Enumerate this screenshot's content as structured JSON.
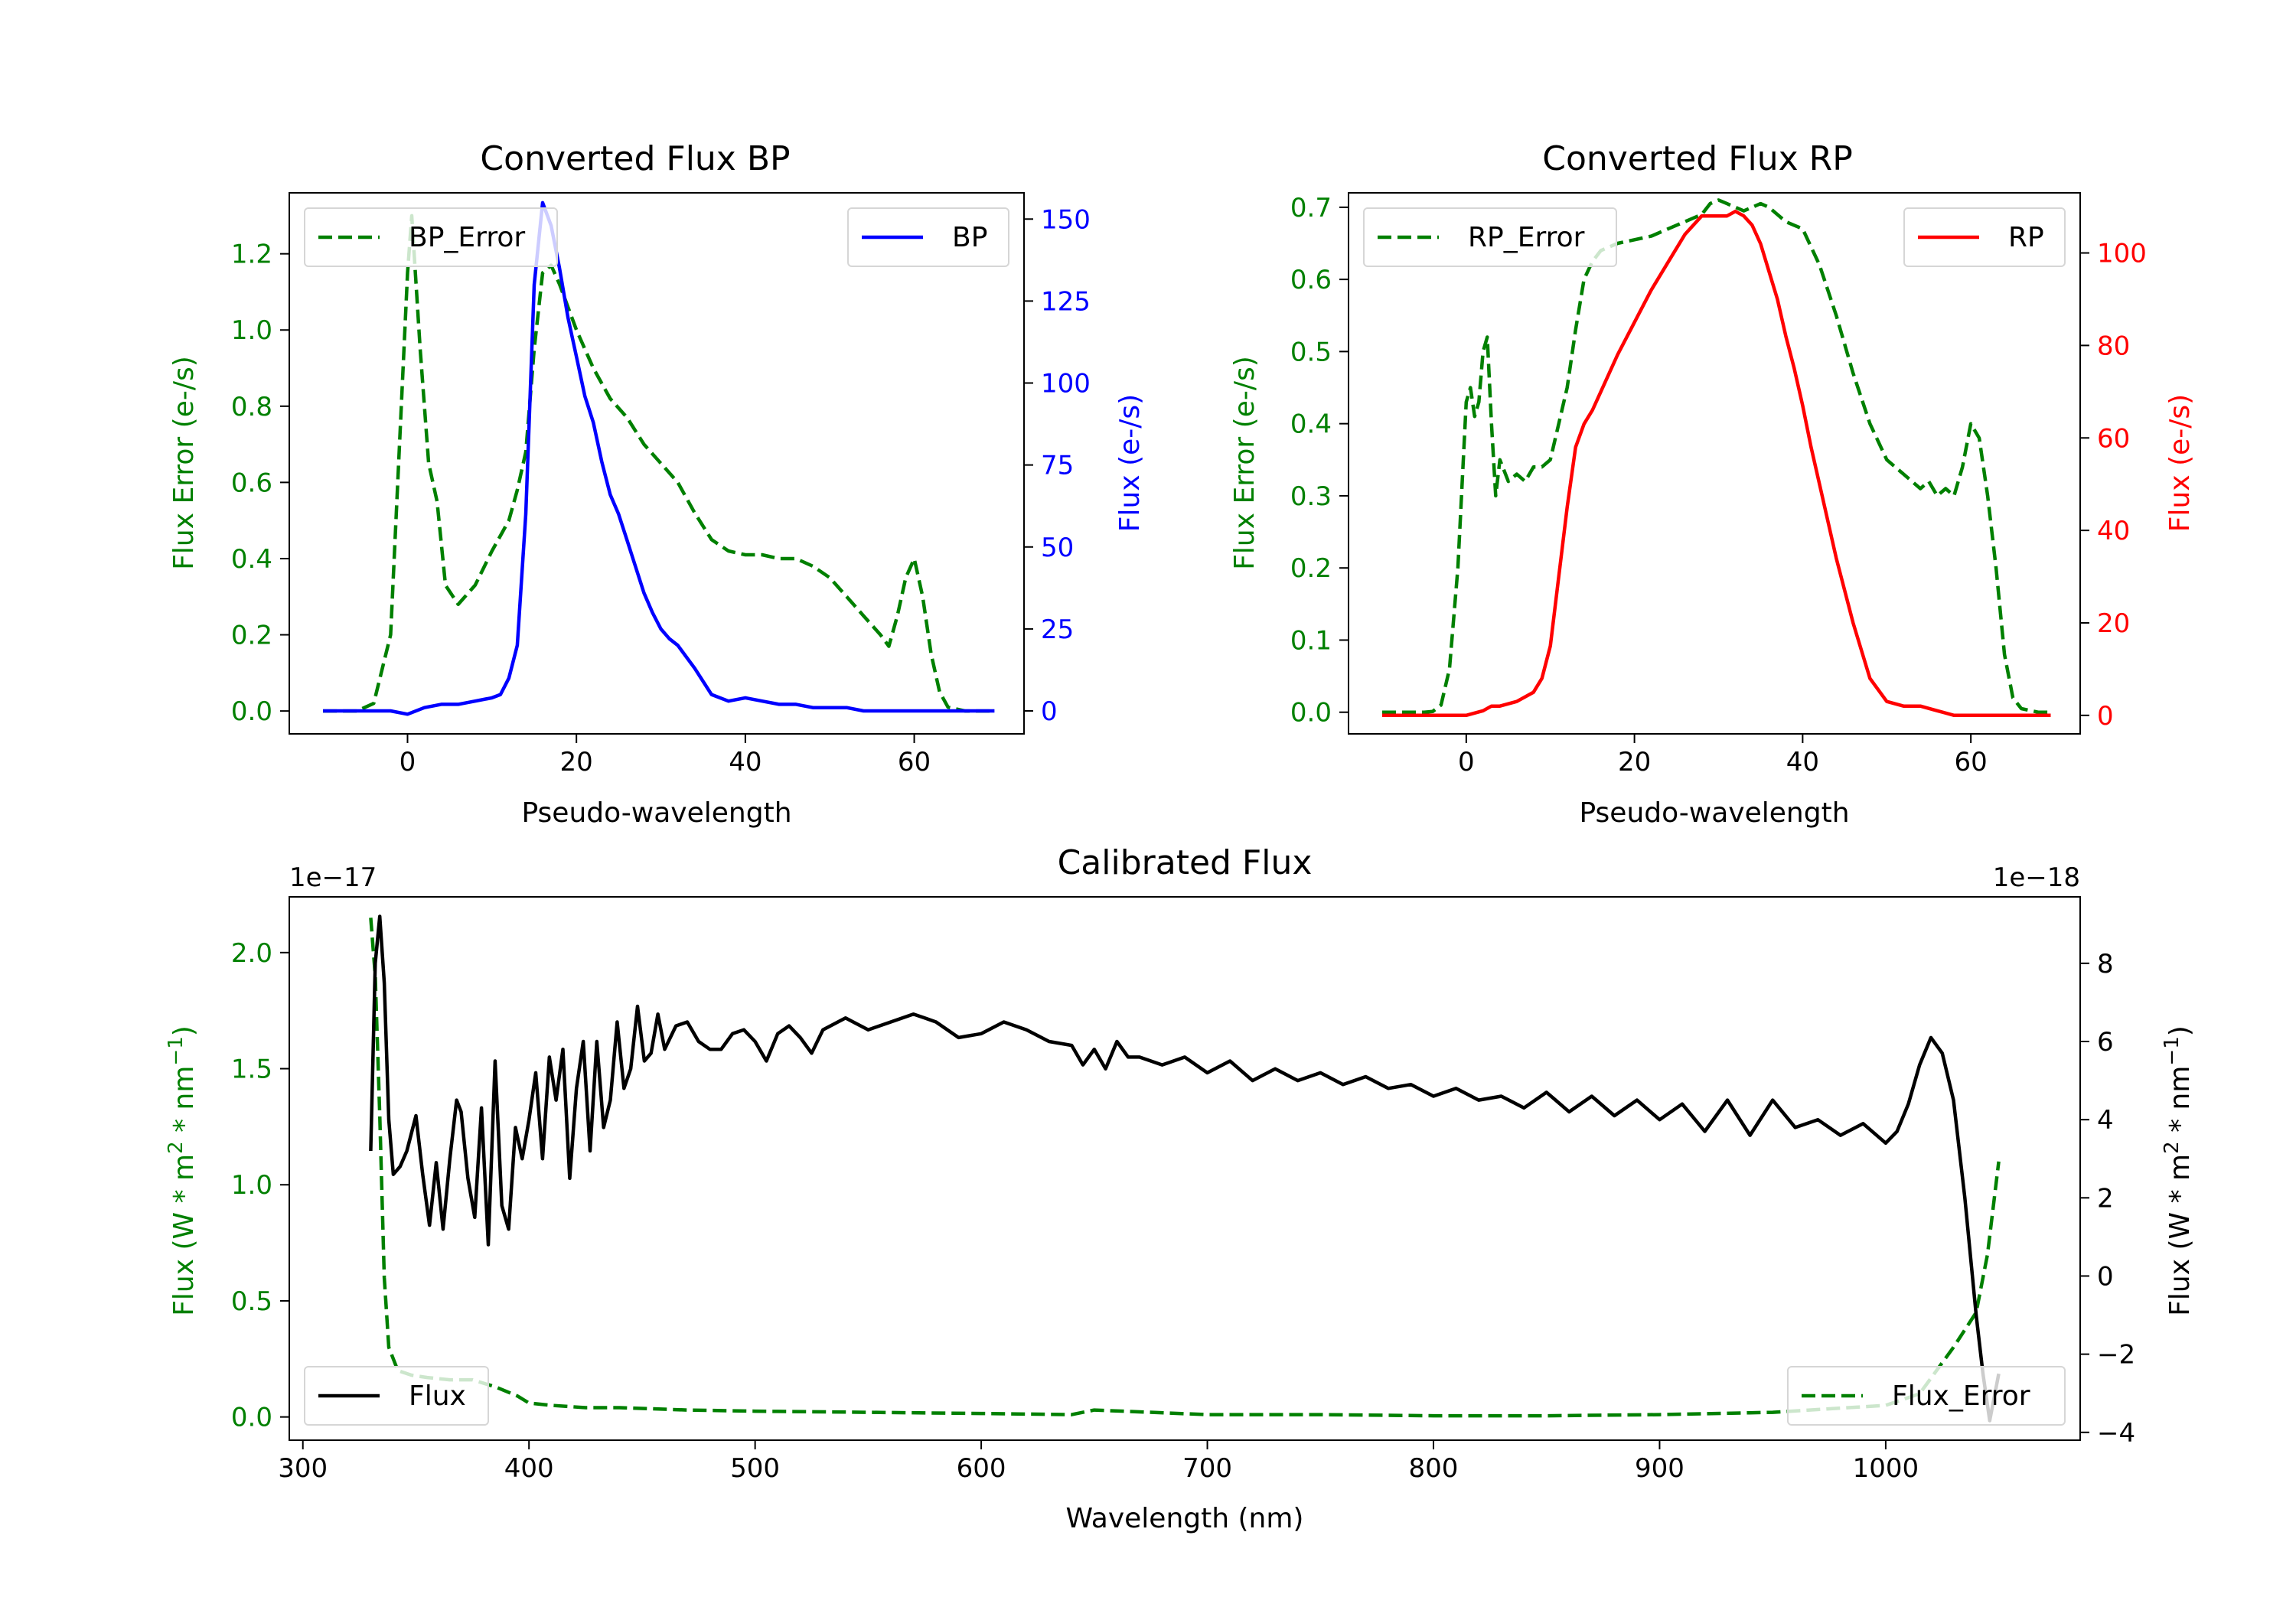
{
  "chart_data": [
    {
      "type": "line",
      "title": "Converted Flux BP",
      "xlabel": "Pseudo-wavelength",
      "ylabel_left": "Flux Error (e-/s)",
      "ylabel_right": "Flux (e-/s)",
      "xlim": [
        -14,
        73
      ],
      "ylim_left": [
        -0.06,
        1.36
      ],
      "ylim_right": [
        -7,
        158
      ],
      "xticks": [
        "0",
        "20",
        "40",
        "60"
      ],
      "yticks_left": [
        "0.0",
        "0.2",
        "0.4",
        "0.6",
        "0.8",
        "1.0",
        "1.2"
      ],
      "yticks_right": [
        "0",
        "25",
        "50",
        "75",
        "100",
        "125",
        "150"
      ],
      "legend": [
        {
          "name": "BP_Error",
          "placement": "upper left"
        },
        {
          "name": "BP",
          "placement": "upper right"
        }
      ],
      "series": [
        {
          "name": "BP_Error",
          "axis": "left",
          "color": "#008000",
          "style": "dashed",
          "x": [
            -10,
            -6,
            -4,
            -2,
            0,
            0.5,
            1.5,
            2.5,
            3.5,
            4.5,
            6,
            8,
            10,
            12,
            13,
            14,
            15,
            16,
            17,
            18,
            20,
            22,
            24,
            26,
            28,
            30,
            32,
            34,
            36,
            38,
            40,
            42,
            44,
            46,
            48,
            50,
            52,
            54,
            56,
            57,
            58,
            59,
            60,
            61,
            62,
            63,
            64,
            66,
            68,
            69.5
          ],
          "y": [
            0.0,
            0.0,
            0.02,
            0.2,
            1.15,
            1.3,
            0.95,
            0.65,
            0.55,
            0.33,
            0.28,
            0.33,
            0.42,
            0.5,
            0.58,
            0.68,
            0.95,
            1.15,
            1.17,
            1.12,
            1.0,
            0.9,
            0.82,
            0.77,
            0.7,
            0.65,
            0.6,
            0.52,
            0.45,
            0.42,
            0.41,
            0.41,
            0.4,
            0.4,
            0.38,
            0.35,
            0.3,
            0.25,
            0.2,
            0.17,
            0.25,
            0.35,
            0.4,
            0.3,
            0.15,
            0.05,
            0.01,
            0.0,
            0.0,
            0.0
          ]
        },
        {
          "name": "BP",
          "axis": "right",
          "color": "#0000ff",
          "style": "solid",
          "x": [
            -10,
            -6,
            -2,
            0,
            2,
            4,
            6,
            8,
            10,
            11,
            12,
            13,
            14,
            15,
            16,
            17,
            18,
            19,
            20,
            21,
            22,
            23,
            24,
            25,
            26,
            27,
            28,
            29,
            30,
            31,
            32,
            34,
            36,
            38,
            40,
            42,
            44,
            46,
            48,
            50,
            52,
            54,
            56,
            58,
            60,
            62,
            64,
            66,
            68,
            69.5
          ],
          "y": [
            0,
            0,
            0,
            -1,
            1,
            2,
            2,
            3,
            4,
            5,
            10,
            20,
            60,
            130,
            155,
            148,
            135,
            120,
            108,
            96,
            88,
            76,
            66,
            60,
            52,
            44,
            36,
            30,
            25,
            22,
            20,
            13,
            5,
            3,
            4,
            3,
            2,
            2,
            1,
            1,
            1,
            0,
            0,
            0,
            0,
            0,
            0,
            0,
            0,
            0
          ]
        }
      ]
    },
    {
      "type": "line",
      "title": "Converted Flux RP",
      "xlabel": "Pseudo-wavelength",
      "ylabel_left": "Flux Error (e-/s)",
      "ylabel_right": "Flux (e-/s)",
      "xlim": [
        -14,
        73
      ],
      "ylim_left": [
        -0.03,
        0.72
      ],
      "ylim_right": [
        -4,
        113
      ],
      "xticks": [
        "0",
        "20",
        "40",
        "60"
      ],
      "yticks_left": [
        "0.0",
        "0.1",
        "0.2",
        "0.3",
        "0.4",
        "0.5",
        "0.6",
        "0.7"
      ],
      "yticks_right": [
        "0",
        "20",
        "40",
        "60",
        "80",
        "100"
      ],
      "legend": [
        {
          "name": "RP_Error",
          "placement": "upper left"
        },
        {
          "name": "RP",
          "placement": "upper right"
        }
      ],
      "series": [
        {
          "name": "RP_Error",
          "axis": "left",
          "color": "#008000",
          "style": "dashed",
          "x": [
            -10,
            -5,
            -4,
            -3,
            -2,
            -1,
            0,
            0.5,
            1,
            1.5,
            2,
            2.5,
            3,
            3.5,
            4,
            5,
            6,
            7,
            8,
            9,
            10,
            11,
            12,
            13,
            14,
            15,
            16,
            17,
            18,
            20,
            22,
            24,
            26,
            28,
            29,
            30,
            31,
            32,
            33,
            34,
            35,
            36,
            37,
            38,
            39,
            40,
            41,
            42,
            44,
            46,
            48,
            50,
            52,
            54,
            55,
            56,
            57,
            58,
            59,
            60,
            61,
            62,
            63,
            64,
            65,
            66,
            68,
            69.5
          ],
          "y": [
            0,
            0,
            0.001,
            0.01,
            0.06,
            0.2,
            0.43,
            0.45,
            0.41,
            0.43,
            0.5,
            0.52,
            0.4,
            0.3,
            0.35,
            0.32,
            0.33,
            0.32,
            0.34,
            0.34,
            0.35,
            0.4,
            0.45,
            0.53,
            0.6,
            0.625,
            0.64,
            0.645,
            0.65,
            0.655,
            0.66,
            0.67,
            0.68,
            0.69,
            0.705,
            0.71,
            0.705,
            0.7,
            0.695,
            0.7,
            0.705,
            0.7,
            0.69,
            0.68,
            0.675,
            0.67,
            0.645,
            0.62,
            0.55,
            0.47,
            0.4,
            0.35,
            0.33,
            0.31,
            0.32,
            0.3,
            0.31,
            0.3,
            0.34,
            0.4,
            0.38,
            0.3,
            0.2,
            0.08,
            0.02,
            0.005,
            0,
            0
          ]
        },
        {
          "name": "RP",
          "axis": "right",
          "color": "#ff0000",
          "style": "solid",
          "x": [
            -10,
            -6,
            -2,
            0,
            2,
            3,
            4,
            6,
            8,
            9,
            10,
            11,
            12,
            13,
            14,
            15,
            16,
            18,
            20,
            22,
            24,
            26,
            28,
            29,
            30,
            31,
            32,
            33,
            34,
            35,
            36,
            37,
            38,
            39,
            40,
            41,
            42,
            44,
            46,
            48,
            50,
            52,
            54,
            56,
            58,
            60,
            62,
            64,
            66,
            68,
            69.5
          ],
          "y": [
            0,
            0,
            0,
            0,
            1,
            2,
            2,
            3,
            5,
            8,
            15,
            30,
            45,
            58,
            63,
            66,
            70,
            78,
            85,
            92,
            98,
            104,
            108,
            108,
            108,
            108,
            109,
            108,
            106,
            102,
            96,
            90,
            82,
            75,
            67,
            58,
            50,
            34,
            20,
            8,
            3,
            2,
            2,
            1,
            0,
            0,
            0,
            0,
            0,
            0,
            0
          ]
        }
      ]
    },
    {
      "type": "line",
      "title": "Calibrated Flux",
      "xlabel": "Wavelength (nm)",
      "ylabel_left": "Flux (W * m^2 * nm^-1)",
      "ylabel_right": "Flux (W * m^2 * nm^-1)",
      "ylabel_left_main": "Flux (W * m",
      "ylabel_left_mid": " * nm",
      "ylabel_left_end": ")",
      "ylabel_right_main": "Flux (W * m",
      "ylabel_right_mid": " * nm",
      "ylabel_right_end": ")",
      "sup_two": "2",
      "sup_neg_one": "−1",
      "offset_left": "1e−17",
      "offset_right": "1e−18",
      "xlim": [
        294,
        1086
      ],
      "ylim_left": [
        -0.1,
        2.24
      ],
      "ylim_right": [
        -4.2,
        9.7
      ],
      "xticks": [
        "300",
        "400",
        "500",
        "600",
        "700",
        "800",
        "900",
        "1000"
      ],
      "yticks_left": [
        "0.0",
        "0.5",
        "1.0",
        "1.5",
        "2.0"
      ],
      "yticks_right": [
        "−4",
        "−2",
        "0",
        "2",
        "4",
        "6",
        "8"
      ],
      "legend": [
        {
          "name": "Flux",
          "placement": "lower left"
        },
        {
          "name": "Flux_Error",
          "placement": "lower right"
        }
      ],
      "series": [
        {
          "name": "Flux_Error",
          "axis": "left",
          "color": "#008000",
          "style": "dashed",
          "scale": "1e-17",
          "x": [
            330,
            332,
            334,
            336,
            338,
            342,
            348,
            355,
            365,
            375,
            385,
            395,
            400,
            410,
            425,
            440,
            470,
            500,
            550,
            600,
            640,
            650,
            700,
            750,
            800,
            850,
            900,
            950,
            1000,
            1015,
            1030,
            1040,
            1045,
            1050
          ],
          "y": [
            2.15,
            1.9,
            1.3,
            0.6,
            0.3,
            0.2,
            0.18,
            0.17,
            0.16,
            0.16,
            0.13,
            0.09,
            0.06,
            0.05,
            0.04,
            0.04,
            0.03,
            0.025,
            0.02,
            0.015,
            0.01,
            0.03,
            0.01,
            0.01,
            0.005,
            0.005,
            0.01,
            0.02,
            0.05,
            0.1,
            0.3,
            0.45,
            0.7,
            1.1
          ]
        },
        {
          "name": "Flux",
          "axis": "right",
          "color": "#000000",
          "style": "solid",
          "scale": "1e-18",
          "x": [
            330,
            332,
            334,
            336,
            338,
            340,
            343,
            346,
            350,
            353,
            356,
            359,
            362,
            365,
            368,
            370,
            373,
            376,
            379,
            382,
            385,
            388,
            391,
            394,
            397,
            400,
            403,
            406,
            409,
            412,
            415,
            418,
            421,
            424,
            427,
            430,
            433,
            436,
            439,
            442,
            445,
            448,
            451,
            454,
            457,
            460,
            465,
            470,
            475,
            480,
            485,
            490,
            495,
            500,
            505,
            510,
            515,
            520,
            525,
            530,
            540,
            550,
            560,
            570,
            575,
            580,
            590,
            600,
            610,
            620,
            630,
            640,
            645,
            650,
            655,
            660,
            665,
            670,
            680,
            690,
            700,
            710,
            720,
            730,
            740,
            750,
            760,
            770,
            780,
            790,
            800,
            810,
            820,
            830,
            840,
            850,
            860,
            870,
            880,
            890,
            900,
            910,
            920,
            930,
            940,
            950,
            960,
            970,
            980,
            990,
            1000,
            1005,
            1010,
            1015,
            1020,
            1025,
            1030,
            1035,
            1040,
            1043,
            1046,
            1050
          ],
          "y": [
            3.2,
            8.0,
            9.2,
            7.5,
            4.0,
            2.6,
            2.8,
            3.2,
            4.1,
            2.6,
            1.3,
            2.9,
            1.2,
            3.0,
            4.5,
            4.2,
            2.5,
            1.5,
            4.3,
            0.8,
            5.5,
            1.8,
            1.2,
            3.8,
            3.0,
            4.0,
            5.2,
            3.0,
            5.6,
            4.5,
            5.8,
            2.5,
            4.8,
            6.0,
            3.2,
            6.0,
            3.8,
            4.5,
            6.5,
            4.8,
            5.3,
            6.9,
            5.5,
            5.7,
            6.7,
            5.8,
            6.4,
            6.5,
            6.0,
            5.8,
            5.8,
            6.2,
            6.3,
            6.0,
            5.5,
            6.2,
            6.4,
            6.1,
            5.7,
            6.3,
            6.6,
            6.3,
            6.5,
            6.7,
            6.6,
            6.5,
            6.1,
            6.2,
            6.5,
            6.3,
            6.0,
            5.9,
            5.4,
            5.8,
            5.3,
            6.0,
            5.6,
            5.6,
            5.4,
            5.6,
            5.2,
            5.5,
            5.0,
            5.3,
            5.0,
            5.2,
            4.9,
            5.1,
            4.8,
            4.9,
            4.6,
            4.8,
            4.5,
            4.6,
            4.3,
            4.7,
            4.2,
            4.6,
            4.1,
            4.5,
            4.0,
            4.4,
            3.7,
            4.5,
            3.6,
            4.5,
            3.8,
            4.0,
            3.6,
            3.9,
            3.4,
            3.7,
            4.4,
            5.4,
            6.1,
            5.7,
            4.5,
            2.0,
            -1.0,
            -2.5,
            -3.7,
            -2.5
          ]
        }
      ]
    }
  ]
}
